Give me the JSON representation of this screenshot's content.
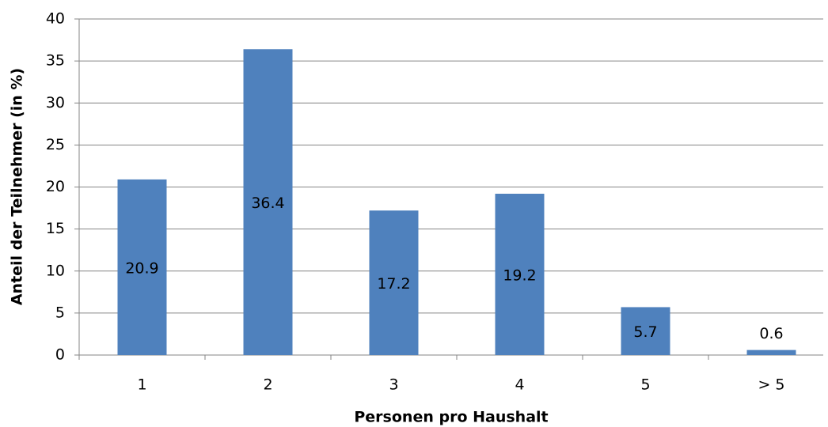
{
  "chart_data": {
    "type": "bar",
    "categories": [
      "1",
      "2",
      "3",
      "4",
      "5",
      "> 5"
    ],
    "values": [
      20.9,
      36.4,
      17.2,
      19.2,
      5.7,
      0.6
    ],
    "color": "#4f81bd",
    "ylim": [
      0,
      40
    ],
    "yticks": [
      0,
      5,
      10,
      15,
      20,
      25,
      30,
      35,
      40
    ],
    "grid": true,
    "x_label": "Personen pro Haushalt",
    "y_label": "Anteil der Teilnehmer (in %)"
  }
}
